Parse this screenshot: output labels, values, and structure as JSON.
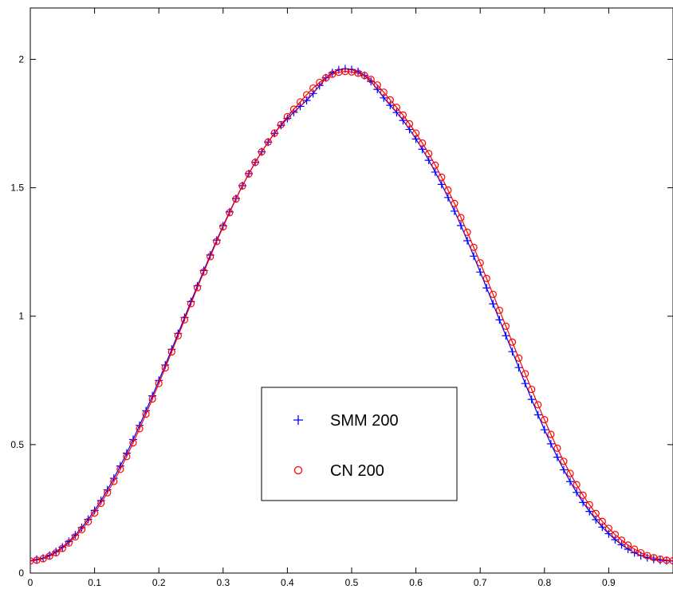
{
  "chart_data": {
    "type": "line",
    "title": "",
    "xlabel": "",
    "ylabel": "",
    "xlim": [
      0,
      1
    ],
    "ylim": [
      0,
      2.2
    ],
    "xticks": [
      0,
      0.1,
      0.2,
      0.3,
      0.4,
      0.5,
      0.6,
      0.7,
      0.8,
      0.9
    ],
    "xtick_labels": [
      "0",
      "0.1",
      "0.2",
      "0.3",
      "0.4",
      "0.5",
      "0.6",
      "0.7",
      "0.8",
      "0.9"
    ],
    "yticks": [
      0,
      0.5,
      1,
      1.5,
      2
    ],
    "ytick_labels": [
      "0",
      "0.5",
      "1",
      "1.5",
      "2"
    ],
    "grid": false,
    "legend": {
      "position": "center-bottom",
      "entries": [
        "SMM 200",
        "CN 200"
      ]
    },
    "series": [
      {
        "name": "SMM 200",
        "color": "#0000ff",
        "marker": "plus",
        "x": [
          0.0,
          0.01,
          0.02,
          0.03,
          0.04,
          0.05,
          0.06,
          0.07,
          0.08,
          0.09,
          0.1,
          0.11,
          0.12,
          0.13,
          0.14,
          0.15,
          0.16,
          0.17,
          0.18,
          0.19,
          0.2,
          0.21,
          0.22,
          0.23,
          0.24,
          0.25,
          0.26,
          0.27,
          0.28,
          0.29,
          0.3,
          0.31,
          0.32,
          0.33,
          0.34,
          0.35,
          0.36,
          0.37,
          0.38,
          0.39,
          0.4,
          0.41,
          0.42,
          0.43,
          0.44,
          0.45,
          0.46,
          0.47,
          0.48,
          0.49,
          0.5,
          0.51,
          0.52,
          0.53,
          0.54,
          0.55,
          0.56,
          0.57,
          0.58,
          0.59,
          0.6,
          0.61,
          0.62,
          0.63,
          0.64,
          0.65,
          0.66,
          0.67,
          0.68,
          0.69,
          0.7,
          0.71,
          0.72,
          0.73,
          0.74,
          0.75,
          0.76,
          0.77,
          0.78,
          0.79,
          0.8,
          0.81,
          0.82,
          0.83,
          0.84,
          0.85,
          0.86,
          0.87,
          0.88,
          0.89,
          0.9,
          0.91,
          0.92,
          0.93,
          0.94,
          0.95,
          0.96,
          0.97,
          0.98,
          0.99,
          1.0
        ],
        "y": [
          0.048,
          0.053,
          0.058,
          0.069,
          0.083,
          0.101,
          0.123,
          0.148,
          0.177,
          0.209,
          0.244,
          0.282,
          0.324,
          0.369,
          0.417,
          0.467,
          0.52,
          0.575,
          0.632,
          0.69,
          0.75,
          0.81,
          0.871,
          0.933,
          0.995,
          1.057,
          1.118,
          1.178,
          1.238,
          1.296,
          1.352,
          1.406,
          1.458,
          1.508,
          1.555,
          1.599,
          1.64,
          1.678,
          1.712,
          1.743,
          1.77,
          1.794,
          1.817,
          1.84,
          1.867,
          1.898,
          1.928,
          1.948,
          1.959,
          1.963,
          1.96,
          1.952,
          1.937,
          1.914,
          1.883,
          1.85,
          1.821,
          1.793,
          1.762,
          1.727,
          1.69,
          1.65,
          1.607,
          1.561,
          1.513,
          1.462,
          1.409,
          1.353,
          1.294,
          1.234,
          1.172,
          1.11,
          1.048,
          0.986,
          0.924,
          0.862,
          0.8,
          0.738,
          0.676,
          0.616,
          0.558,
          0.503,
          0.451,
          0.402,
          0.356,
          0.314,
          0.275,
          0.24,
          0.208,
          0.179,
          0.153,
          0.13,
          0.11,
          0.093,
          0.079,
          0.068,
          0.06,
          0.054,
          0.05,
          0.048,
          0.047
        ]
      },
      {
        "name": "CN 200",
        "color": "#ff0000",
        "marker": "circle",
        "x": [
          0.0,
          0.01,
          0.02,
          0.03,
          0.04,
          0.05,
          0.06,
          0.07,
          0.08,
          0.09,
          0.1,
          0.11,
          0.12,
          0.13,
          0.14,
          0.15,
          0.16,
          0.17,
          0.18,
          0.19,
          0.2,
          0.21,
          0.22,
          0.23,
          0.24,
          0.25,
          0.26,
          0.27,
          0.28,
          0.29,
          0.3,
          0.31,
          0.32,
          0.33,
          0.34,
          0.35,
          0.36,
          0.37,
          0.38,
          0.39,
          0.4,
          0.41,
          0.42,
          0.43,
          0.44,
          0.45,
          0.46,
          0.47,
          0.48,
          0.49,
          0.5,
          0.51,
          0.52,
          0.53,
          0.54,
          0.55,
          0.56,
          0.57,
          0.58,
          0.59,
          0.6,
          0.61,
          0.62,
          0.63,
          0.64,
          0.65,
          0.66,
          0.67,
          0.68,
          0.69,
          0.7,
          0.71,
          0.72,
          0.73,
          0.74,
          0.75,
          0.76,
          0.77,
          0.78,
          0.79,
          0.8,
          0.81,
          0.82,
          0.83,
          0.84,
          0.85,
          0.86,
          0.87,
          0.88,
          0.89,
          0.9,
          0.91,
          0.92,
          0.93,
          0.94,
          0.95,
          0.96,
          0.97,
          0.98,
          0.99,
          1.0
        ],
        "y": [
          0.047,
          0.05,
          0.056,
          0.066,
          0.079,
          0.096,
          0.117,
          0.141,
          0.169,
          0.2,
          0.234,
          0.272,
          0.313,
          0.357,
          0.404,
          0.454,
          0.507,
          0.562,
          0.619,
          0.678,
          0.738,
          0.799,
          0.861,
          0.924,
          0.986,
          1.049,
          1.111,
          1.172,
          1.232,
          1.291,
          1.348,
          1.403,
          1.456,
          1.507,
          1.554,
          1.599,
          1.64,
          1.678,
          1.713,
          1.746,
          1.777,
          1.806,
          1.834,
          1.862,
          1.888,
          1.91,
          1.928,
          1.942,
          1.95,
          1.953,
          1.951,
          1.946,
          1.937,
          1.922,
          1.9,
          1.872,
          1.842,
          1.813,
          1.783,
          1.749,
          1.713,
          1.674,
          1.633,
          1.588,
          1.541,
          1.491,
          1.439,
          1.384,
          1.327,
          1.268,
          1.208,
          1.147,
          1.085,
          1.023,
          0.961,
          0.899,
          0.837,
          0.776,
          0.715,
          0.655,
          0.597,
          0.54,
          0.486,
          0.435,
          0.388,
          0.344,
          0.303,
          0.266,
          0.232,
          0.201,
          0.174,
          0.15,
          0.128,
          0.109,
          0.093,
          0.079,
          0.068,
          0.06,
          0.054,
          0.05,
          0.048
        ]
      }
    ]
  }
}
